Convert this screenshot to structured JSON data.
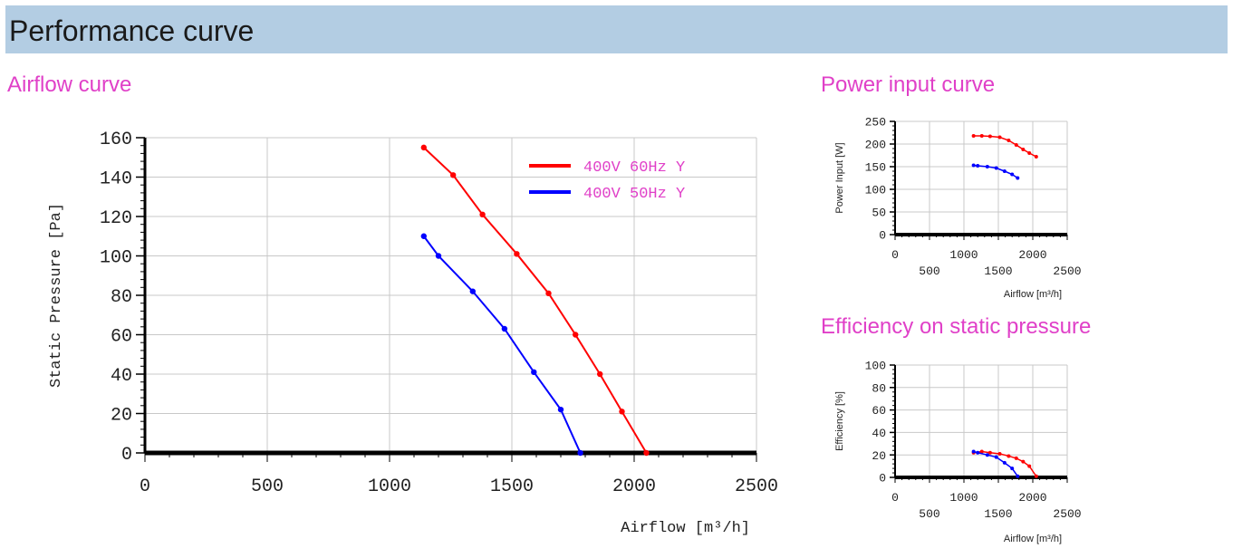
{
  "header": {
    "title": "Performance curve"
  },
  "sections": {
    "airflow": "Airflow curve",
    "power": "Power input curve",
    "efficiency": "Efficiency on static pressure"
  },
  "chart_data": [
    {
      "id": "airflow",
      "type": "line",
      "xlabel": "Airflow [m³/h]",
      "ylabel": "Static Pressure [Pa]",
      "xlim": [
        0,
        2500
      ],
      "ylim": [
        0,
        160
      ],
      "xticks": [
        0,
        500,
        1000,
        1500,
        2000,
        2500
      ],
      "yticks": [
        0,
        20,
        40,
        60,
        80,
        100,
        120,
        140,
        160
      ],
      "grid": true,
      "legend": "top-right",
      "series": [
        {
          "name": "400V 60Hz Y",
          "color": "#ff0000",
          "x": [
            1140,
            1260,
            1380,
            1520,
            1650,
            1760,
            1860,
            1950,
            2050
          ],
          "y": [
            155,
            141,
            121,
            101,
            81,
            60,
            40,
            21,
            0
          ]
        },
        {
          "name": "400V 50Hz Y",
          "color": "#0000ff",
          "x": [
            1140,
            1200,
            1340,
            1470,
            1590,
            1700,
            1780
          ],
          "y": [
            110,
            100,
            82,
            63,
            41,
            22,
            0
          ]
        }
      ]
    },
    {
      "id": "power",
      "type": "line",
      "xlabel": "Airflow [m³/h]",
      "ylabel": "Power Input [W]",
      "xlim": [
        0,
        2500
      ],
      "ylim": [
        0,
        250
      ],
      "xticks_row1": [
        0,
        1000,
        2000
      ],
      "xticks_row2": [
        500,
        1500,
        2500
      ],
      "yticks": [
        0,
        50,
        100,
        150,
        200,
        250
      ],
      "grid": true,
      "series": [
        {
          "name": "400V 60Hz Y",
          "color": "#ff0000",
          "x": [
            1140,
            1260,
            1380,
            1520,
            1650,
            1760,
            1860,
            1950,
            2050
          ],
          "y": [
            218,
            218,
            217,
            215,
            208,
            198,
            188,
            180,
            172
          ]
        },
        {
          "name": "400V 50Hz Y",
          "color": "#0000ff",
          "x": [
            1140,
            1200,
            1340,
            1470,
            1590,
            1700,
            1780
          ],
          "y": [
            153,
            152,
            150,
            147,
            140,
            133,
            125
          ]
        }
      ]
    },
    {
      "id": "efficiency",
      "type": "line",
      "xlabel": "Airflow [m³/h]",
      "ylabel": "Efficiency [%]",
      "xlim": [
        0,
        2500
      ],
      "ylim": [
        0,
        100
      ],
      "xticks_row1": [
        0,
        1000,
        2000
      ],
      "xticks_row2": [
        500,
        1500,
        2500
      ],
      "yticks": [
        0,
        20,
        40,
        60,
        80,
        100
      ],
      "grid": true,
      "series": [
        {
          "name": "400V 60Hz Y",
          "color": "#ff0000",
          "x": [
            1140,
            1260,
            1380,
            1520,
            1650,
            1760,
            1860,
            1950,
            2050
          ],
          "y": [
            22,
            23,
            22,
            21,
            19,
            17,
            14,
            10,
            1
          ]
        },
        {
          "name": "400V 50Hz Y",
          "color": "#0000ff",
          "x": [
            1140,
            1200,
            1340,
            1470,
            1590,
            1700,
            1780
          ],
          "y": [
            23,
            22,
            20,
            18,
            13,
            8,
            1
          ]
        }
      ]
    }
  ]
}
